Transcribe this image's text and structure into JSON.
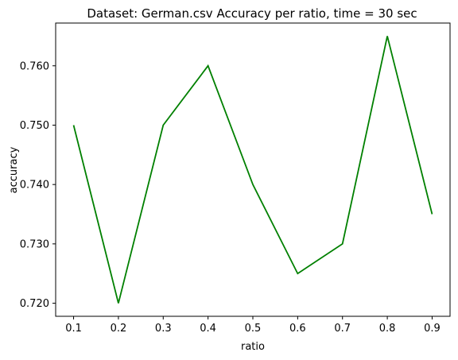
{
  "chart_data": {
    "type": "line",
    "title": "Dataset: German.csv Accuracy per ratio, time = 30 sec",
    "xlabel": "ratio",
    "ylabel": "accuracy",
    "x": [
      0.1,
      0.2,
      0.3,
      0.4,
      0.5,
      0.6,
      0.7,
      0.8,
      0.9
    ],
    "series": [
      {
        "values": [
          0.75,
          0.72,
          0.75,
          0.76,
          0.74,
          0.725,
          0.73,
          0.765,
          0.735
        ],
        "color": "#008000"
      }
    ],
    "xlim": [
      0.06,
      0.94
    ],
    "ylim": [
      0.7178,
      0.7672
    ],
    "xticks": [
      "0.1",
      "0.2",
      "0.3",
      "0.4",
      "0.5",
      "0.6",
      "0.7",
      "0.8",
      "0.9"
    ],
    "xtick_values": [
      0.1,
      0.2,
      0.3,
      0.4,
      0.5,
      0.6,
      0.7,
      0.8,
      0.9
    ],
    "yticks": [
      "0.720",
      "0.730",
      "0.740",
      "0.750",
      "0.760"
    ],
    "ytick_values": [
      0.72,
      0.73,
      0.74,
      0.75,
      0.76
    ],
    "grid": false,
    "legend": "none"
  }
}
